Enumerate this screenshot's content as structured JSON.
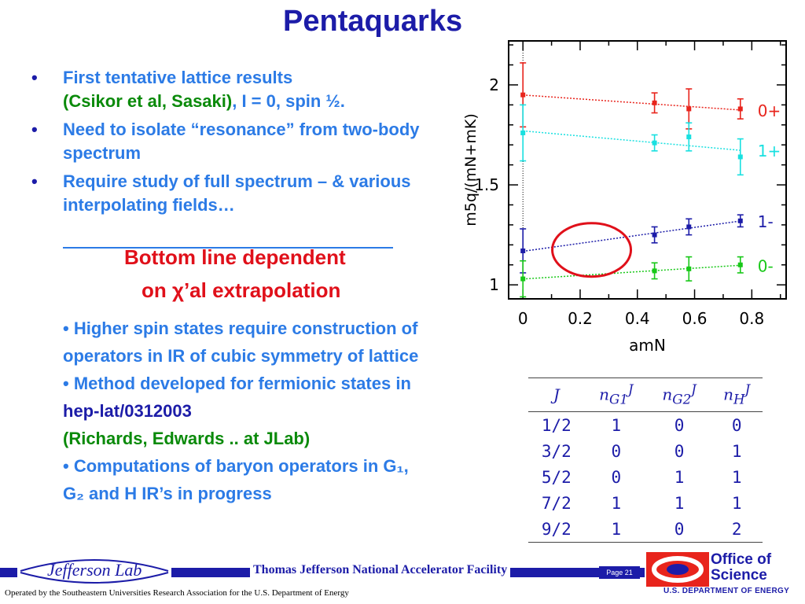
{
  "title": "Pentaquarks",
  "bullets": {
    "b1_line1": "First tentative lattice results",
    "b1_green": "(Csikor et al, Sasaki)",
    "b1_rest": ", I = 0, spin ½.",
    "b2": "Need to isolate “resonance” from two-body spectrum",
    "b3": "Require study of full spectrum – & various interpolating fields…"
  },
  "bottom_line": {
    "line1": "Bottom line dependent",
    "line2": "on χ’al extrapolation"
  },
  "sub": {
    "s1": "• Higher spin states require construction of operators in IR of cubic symmetry of lattice",
    "s2a": "• Method developed for fermionic states in ",
    "s2b": "hep-lat/0312003",
    "s3": " (Richards, Edwards .. at JLab)",
    "s4": "• Computations of baryon operators in G₁, G₂ and H IR’s in progress"
  },
  "ir_table": {
    "headers": [
      "J",
      "nJG1",
      "nJG2",
      "nJH"
    ],
    "rows": [
      [
        "1/2",
        "1",
        "0",
        "0"
      ],
      [
        "3/2",
        "0",
        "0",
        "1"
      ],
      [
        "5/2",
        "0",
        "1",
        "1"
      ],
      [
        "7/2",
        "1",
        "1",
        "1"
      ],
      [
        "9/2",
        "1",
        "0",
        "2"
      ]
    ]
  },
  "footer": {
    "facility": "Thomas Jefferson National Accelerator Facility",
    "page": "Page 21",
    "jlab_logo": "Jefferson Lab",
    "office_line1": "Office of",
    "office_line2": "Science",
    "doe": "U.S. DEPARTMENT OF ENERGY",
    "operated": "Operated by the Southeastern Universities Research Association for the U.S. Department of  Energy"
  },
  "chart_data": {
    "type": "scatter",
    "xlabel": "amN",
    "ylabel": "m5q/(mN+mK)",
    "xlim": [
      -0.05,
      0.92
    ],
    "ylim": [
      0.93,
      2.22
    ],
    "xticks": [
      "0",
      "0.2",
      "0.4",
      "0.6",
      "0.8"
    ],
    "yticks": [
      "1",
      "1.5",
      "2"
    ],
    "series": [
      {
        "name": "0+",
        "color": "#e8241c",
        "x": [
          0,
          0.46,
          0.58,
          0.76
        ],
        "y": [
          1.95,
          1.91,
          1.88,
          1.88
        ],
        "err": [
          0.16,
          0.05,
          0.1,
          0.05
        ]
      },
      {
        "name": "1+",
        "color": "#18e0e0",
        "x": [
          0,
          0.46,
          0.58,
          0.76
        ],
        "y": [
          1.76,
          1.71,
          1.74,
          1.64
        ],
        "err": [
          0.14,
          0.04,
          0.07,
          0.09
        ]
      },
      {
        "name": "1-",
        "color": "#1c1ca8",
        "x": [
          0,
          0.46,
          0.58,
          0.76
        ],
        "y": [
          1.17,
          1.25,
          1.29,
          1.32
        ],
        "err": [
          0.11,
          0.04,
          0.04,
          0.03
        ]
      },
      {
        "name": "0-",
        "color": "#18c818",
        "x": [
          0,
          0.46,
          0.58,
          0.76
        ],
        "y": [
          1.03,
          1.07,
          1.08,
          1.1
        ],
        "err": [
          0.09,
          0.04,
          0.06,
          0.04
        ]
      }
    ],
    "annotation": {
      "shape": "ellipse",
      "color": "#e0101a"
    }
  },
  "logo_colors": {
    "doe_red": "#e8241c",
    "doe_blue": "#1c1ca8"
  }
}
